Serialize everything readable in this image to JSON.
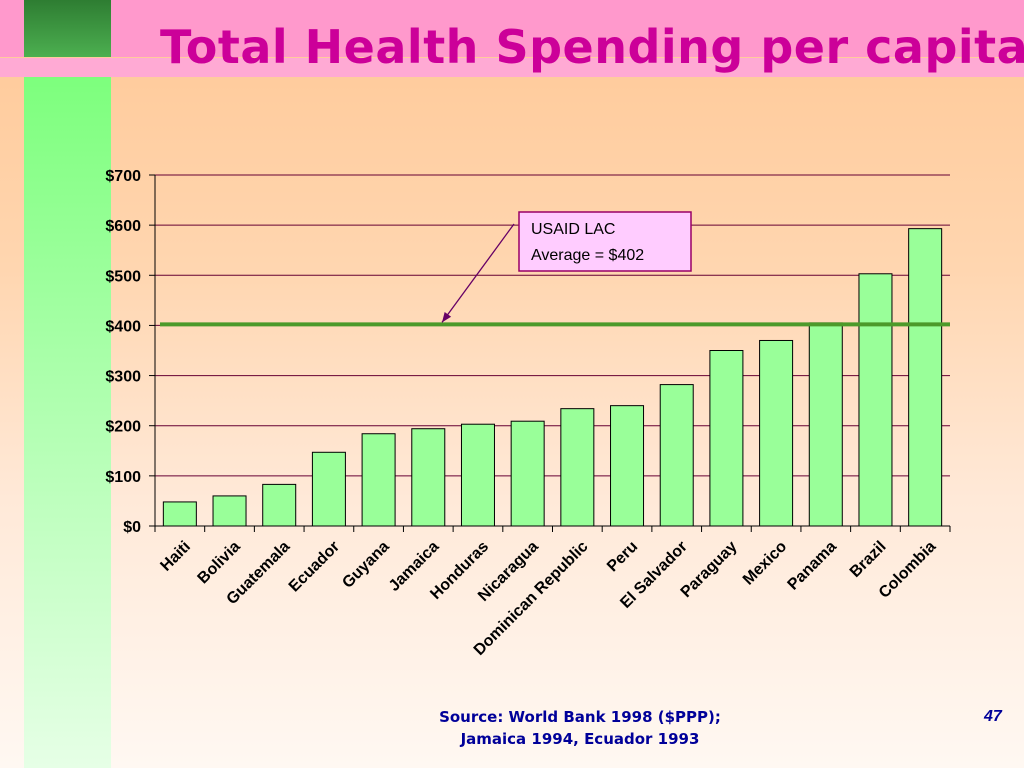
{
  "slide": {
    "title": "Total Health Spending per capita",
    "source_line1": "Source: World Bank 1998 ($PPP);",
    "source_line2": "Jamaica 1994, Ecuador 1993",
    "page_number": "47"
  },
  "colors": {
    "title": "#cc0099",
    "bar_fill": "#99ff99",
    "bar_stroke": "#000000",
    "average_line": "#4c9a2a",
    "annotation_fill": "#ffccff",
    "annotation_border": "#990066",
    "axis_text": "#000000",
    "source_text": "#000099"
  },
  "chart_data": {
    "type": "bar",
    "categories": [
      "Haiti",
      "Bolivia",
      "Guatemala",
      "Ecuador",
      "Guyana",
      "Jamaica",
      "Honduras",
      "Nicaragua",
      "Dominican Republic",
      "Peru",
      "El Salvador",
      "Paraguay",
      "Mexico",
      "Panama",
      "Brazil",
      "Colombia"
    ],
    "values": [
      48,
      60,
      83,
      147,
      184,
      194,
      203,
      209,
      234,
      240,
      282,
      350,
      370,
      405,
      503,
      593
    ],
    "ylim": [
      0,
      700
    ],
    "yticks": [
      0,
      100,
      200,
      300,
      400,
      500,
      600,
      700
    ],
    "ytick_labels": [
      "$0",
      "$100",
      "$200",
      "$300",
      "$400",
      "$500",
      "$600",
      "$700"
    ],
    "grid": true,
    "reference_line": {
      "value": 402,
      "label_line1": "USAID LAC",
      "label_line2": "Average = $402"
    }
  }
}
